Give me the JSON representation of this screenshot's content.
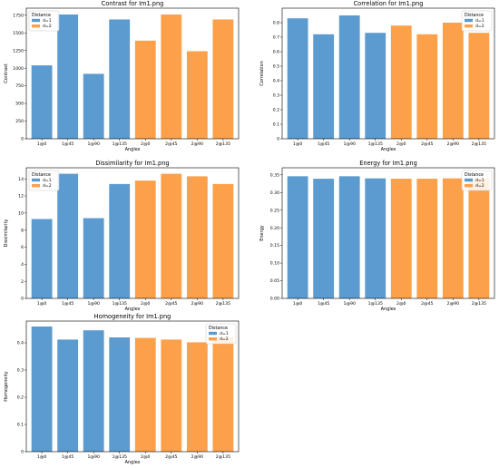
{
  "colors": {
    "d1": "#5b9bd0",
    "d2": "#fca04a",
    "axis": "#000000",
    "grid": "none"
  },
  "chart_data": [
    {
      "type": "bar",
      "title": "Contrast for Im1.png",
      "xlabel": "Angles",
      "ylabel": "Contrast",
      "categories": [
        "1@0",
        "1@45",
        "1@90",
        "1@135",
        "2@0",
        "2@45",
        "2@90",
        "2@135"
      ],
      "values": [
        1040,
        1760,
        920,
        1690,
        1390,
        1760,
        1240,
        1690
      ],
      "series_of_bar": [
        "d=1",
        "d=1",
        "d=1",
        "d=1",
        "d=2",
        "d=2",
        "d=2",
        "d=2"
      ],
      "ylim": [
        0,
        1850
      ],
      "yticks": [
        0,
        250,
        500,
        750,
        1000,
        1250,
        1500,
        1750
      ],
      "legend": {
        "title": "Distance",
        "entries": [
          "d=1",
          "d=2"
        ],
        "placement": "top-left"
      },
      "grid": false
    },
    {
      "type": "bar",
      "title": "Correlation for Im1.png",
      "xlabel": "Angles",
      "ylabel": "Correlation",
      "categories": [
        "1@0",
        "1@45",
        "1@90",
        "1@135",
        "2@0",
        "2@45",
        "2@90",
        "2@135"
      ],
      "values": [
        0.83,
        0.72,
        0.85,
        0.73,
        0.78,
        0.72,
        0.8,
        0.73
      ],
      "series_of_bar": [
        "d=1",
        "d=1",
        "d=1",
        "d=1",
        "d=2",
        "d=2",
        "d=2",
        "d=2"
      ],
      "ylim": [
        0,
        0.9
      ],
      "yticks": [
        0.0,
        0.1,
        0.2,
        0.3,
        0.4,
        0.5,
        0.6,
        0.7,
        0.8
      ],
      "legend": {
        "title": "Distance",
        "entries": [
          "d=1",
          "d=2"
        ],
        "placement": "top-right"
      },
      "grid": false
    },
    {
      "type": "bar",
      "title": "Dissimilarity for Im1.png",
      "xlabel": "Angles",
      "ylabel": "Dissimilarity",
      "categories": [
        "1@0",
        "1@45",
        "1@90",
        "1@135",
        "2@0",
        "2@45",
        "2@90",
        "2@135"
      ],
      "values": [
        9.3,
        14.6,
        9.4,
        13.4,
        13.8,
        14.6,
        14.3,
        13.4
      ],
      "series_of_bar": [
        "d=1",
        "d=1",
        "d=1",
        "d=1",
        "d=2",
        "d=2",
        "d=2",
        "d=2"
      ],
      "ylim": [
        0,
        15.3
      ],
      "yticks": [
        0,
        2,
        4,
        6,
        8,
        10,
        12,
        14
      ],
      "legend": {
        "title": "Distance",
        "entries": [
          "d=1",
          "d=2"
        ],
        "placement": "top-left"
      },
      "grid": false
    },
    {
      "type": "bar",
      "title": "Energy for Im1.png",
      "xlabel": "Angles",
      "ylabel": "Energy",
      "categories": [
        "1@0",
        "1@45",
        "1@90",
        "1@135",
        "2@0",
        "2@45",
        "2@90",
        "2@135"
      ],
      "values": [
        0.346,
        0.339,
        0.346,
        0.34,
        0.339,
        0.339,
        0.34,
        0.34
      ],
      "series_of_bar": [
        "d=1",
        "d=1",
        "d=1",
        "d=1",
        "d=2",
        "d=2",
        "d=2",
        "d=2"
      ],
      "ylim": [
        0,
        0.37
      ],
      "yticks": [
        0.0,
        0.05,
        0.1,
        0.15,
        0.2,
        0.25,
        0.3,
        0.35
      ],
      "ytick_labels": [
        "0.00",
        "0.05",
        "0.10",
        "0.15",
        "0.20",
        "0.25",
        "0.30",
        "0.35"
      ],
      "legend": {
        "title": "Distance",
        "entries": [
          "d=1",
          "d=2"
        ],
        "placement": "top-right"
      },
      "grid": false
    },
    {
      "type": "bar",
      "title": "Homogeneity for Im1.png",
      "xlabel": "Angles",
      "ylabel": "Homogeneity",
      "categories": [
        "1@0",
        "1@45",
        "1@90",
        "1@135",
        "2@0",
        "2@45",
        "2@90",
        "2@135"
      ],
      "values": [
        0.46,
        0.412,
        0.446,
        0.42,
        0.418,
        0.412,
        0.402,
        0.42
      ],
      "series_of_bar": [
        "d=1",
        "d=1",
        "d=1",
        "d=1",
        "d=2",
        "d=2",
        "d=2",
        "d=2"
      ],
      "ylim": [
        0,
        0.48
      ],
      "yticks": [
        0.0,
        0.1,
        0.2,
        0.3,
        0.4
      ],
      "legend": {
        "title": "Distance",
        "entries": [
          "d=1",
          "d=2"
        ],
        "placement": "top-right"
      },
      "grid": false
    }
  ]
}
